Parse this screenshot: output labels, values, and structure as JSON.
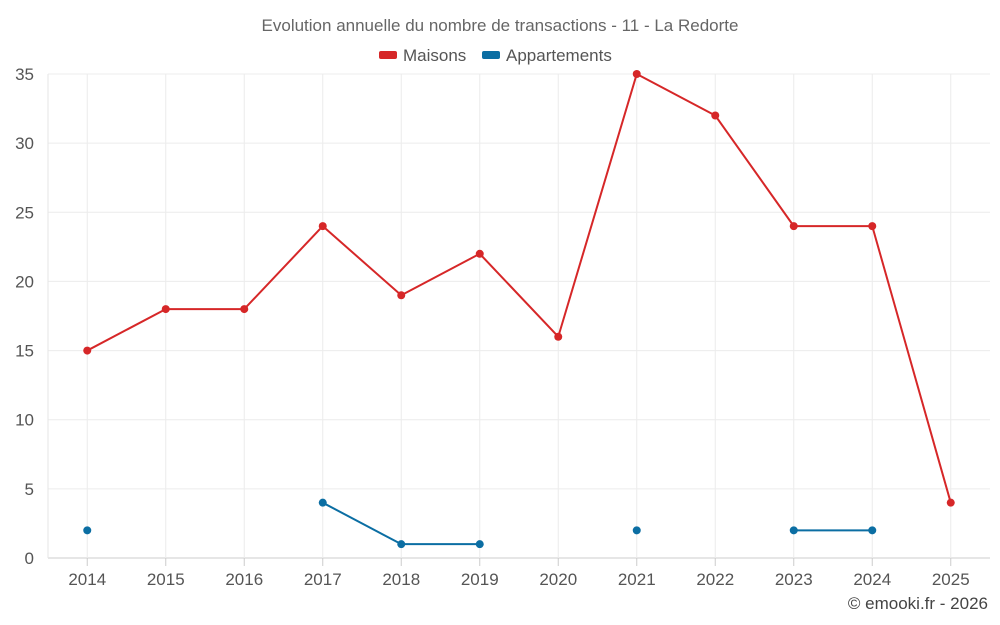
{
  "chart_data": {
    "type": "line",
    "title": "Evolution annuelle du nombre de transactions - 11 - La Redorte",
    "categories": [
      "2014",
      "2015",
      "2016",
      "2017",
      "2018",
      "2019",
      "2020",
      "2021",
      "2022",
      "2023",
      "2024",
      "2025"
    ],
    "series": [
      {
        "name": "Maisons",
        "color": "#d62728",
        "values": [
          15,
          18,
          18,
          24,
          19,
          22,
          16,
          35,
          32,
          24,
          24,
          4
        ]
      },
      {
        "name": "Appartements",
        "color": "#0b6ea3",
        "values": [
          2,
          null,
          null,
          4,
          1,
          1,
          null,
          2,
          null,
          2,
          2,
          null
        ]
      }
    ],
    "y_ticks": [
      0,
      5,
      10,
      15,
      20,
      25,
      30,
      35
    ],
    "ylim": [
      0,
      35
    ],
    "xlabel": "",
    "ylabel": "",
    "grid": true,
    "legend_position": "top-center"
  },
  "credit": "© emooki.fr - 2026"
}
